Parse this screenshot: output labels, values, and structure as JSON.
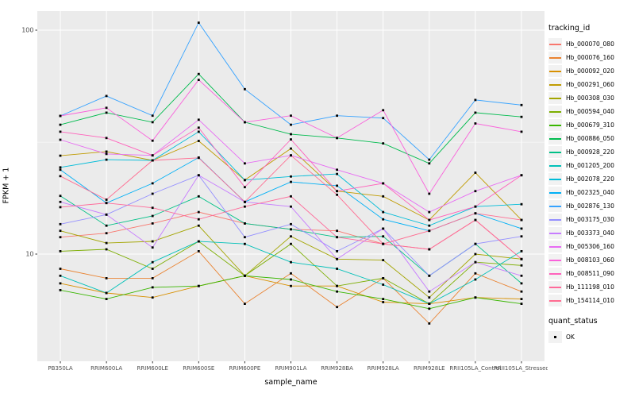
{
  "chart_data": {
    "type": "line",
    "title": "",
    "xlabel": "sample_name",
    "ylabel": "FPKM + 1",
    "y_scale": "log10",
    "ylim": [
      3.3,
      122
    ],
    "y_ticks": [
      100,
      10
    ],
    "y_tick_labels": [
      "100",
      "10"
    ],
    "y_minor_ticks": [
      31.6
    ],
    "grid": true,
    "legend": {
      "title": "tracking_id",
      "position": "right"
    },
    "quant_status": {
      "title": "quant_status",
      "entries": [
        "OK"
      ],
      "point_shape": "black-square"
    },
    "style": {
      "panel_bg": "#EBEBEB",
      "grid_color": "#FFFFFF",
      "point_color": "#000000",
      "tick_label_color": "#4D4D4D",
      "axis_title_color": "#000000"
    },
    "categories": [
      "PB350LA",
      "RRIM600LA",
      "RRIM600LE",
      "RRIM600SE",
      "RRIM600PE",
      "RRIM901LA",
      "RRIM928BA",
      "RRIM928LA",
      "RRIM928LE",
      "RRII105LA_Control",
      "RRII105LA_Stressed"
    ],
    "series": [
      {
        "name": "Hb_000070_080",
        "color": "#F8766D",
        "values": [
          11.9,
          12.4,
          13.7,
          15.4,
          13.7,
          12.9,
          12.7,
          11.1,
          10.5,
          14.2,
          9.5
        ]
      },
      {
        "name": "Hb_000076_160",
        "color": "#EA8331",
        "values": [
          8.6,
          7.8,
          7.8,
          10.3,
          6.0,
          8.2,
          5.8,
          7.8,
          4.9,
          8.2,
          6.8
        ]
      },
      {
        "name": "Hb_000092_020",
        "color": "#D89000",
        "values": [
          7.4,
          6.7,
          6.4,
          7.2,
          8.0,
          7.2,
          7.2,
          6.1,
          6.0,
          6.4,
          6.3
        ]
      },
      {
        "name": "Hb_000291_060",
        "color": "#C09B00",
        "values": [
          27.5,
          28.7,
          26.2,
          32.0,
          21.4,
          29.6,
          19.1,
          18.1,
          14.2,
          23.1,
          14.2
        ]
      },
      {
        "name": "Hb_000308_030",
        "color": "#A3A500",
        "values": [
          12.7,
          11.2,
          11.4,
          13.4,
          8.0,
          12.0,
          9.5,
          9.4,
          6.4,
          10.0,
          9.5
        ]
      },
      {
        "name": "Hb_000594_040",
        "color": "#7CAE00",
        "values": [
          10.3,
          10.5,
          8.6,
          11.4,
          8.0,
          11.1,
          7.2,
          7.8,
          6.0,
          9.2,
          8.9
        ]
      },
      {
        "name": "Hb_000679_310",
        "color": "#39B600",
        "values": [
          6.9,
          6.3,
          7.1,
          7.2,
          8.0,
          7.7,
          6.8,
          6.3,
          5.7,
          6.4,
          6.0
        ]
      },
      {
        "name": "Hb_000886_050",
        "color": "#00BB4E",
        "values": [
          37.8,
          42.8,
          38.8,
          63.7,
          38.8,
          34.3,
          33.0,
          31.2,
          25.4,
          42.8,
          41.0
        ]
      },
      {
        "name": "Hb_000928_220",
        "color": "#00C087",
        "values": [
          18.2,
          13.4,
          14.8,
          18.1,
          13.7,
          12.9,
          11.9,
          12.0,
          8.0,
          11.1,
          7.4
        ]
      },
      {
        "name": "Hb_001205_200",
        "color": "#00C0B8",
        "values": [
          8.0,
          6.7,
          9.2,
          11.4,
          11.1,
          9.2,
          8.6,
          7.3,
          6.0,
          7.7,
          10.3
        ]
      },
      {
        "name": "Hb_002078_220",
        "color": "#00BCD8",
        "values": [
          24.4,
          26.4,
          26.2,
          35.2,
          21.4,
          22.2,
          22.8,
          15.4,
          13.4,
          16.3,
          16.7
        ]
      },
      {
        "name": "Hb_002325_040",
        "color": "#00B0F6",
        "values": [
          23.8,
          16.9,
          20.7,
          27.0,
          17.1,
          21.0,
          20.2,
          14.3,
          12.7,
          15.2,
          13.0
        ]
      },
      {
        "name": "Hb_002876_130",
        "color": "#35A2FF",
        "values": [
          41.4,
          50.8,
          41.5,
          108.0,
          54.5,
          37.8,
          41.5,
          40.5,
          26.4,
          48.8,
          46.3
        ]
      },
      {
        "name": "Hb_003175_030",
        "color": "#9590FF",
        "values": [
          13.6,
          15.0,
          18.6,
          22.5,
          11.9,
          13.6,
          10.3,
          13.0,
          8.0,
          11.1,
          12.0
        ]
      },
      {
        "name": "Hb_003373_040",
        "color": "#C77CFF",
        "values": [
          17.1,
          15.0,
          10.7,
          22.5,
          17.1,
          16.3,
          9.5,
          13.0,
          6.8,
          9.2,
          8.0
        ]
      },
      {
        "name": "Hb_005306_160",
        "color": "#E76BF3",
        "values": [
          32.4,
          28.0,
          27.6,
          39.8,
          25.4,
          27.6,
          23.8,
          20.7,
          15.4,
          19.1,
          22.5
        ]
      },
      {
        "name": "Hb_008103_060",
        "color": "#FA62DB",
        "values": [
          41.4,
          45.0,
          32.1,
          60.0,
          38.8,
          41.5,
          33.0,
          43.9,
          18.6,
          38.3,
          35.2
        ]
      },
      {
        "name": "Hb_008511_090",
        "color": "#FF62BC",
        "values": [
          35.2,
          33.0,
          27.6,
          36.7,
          19.9,
          32.5,
          19.1,
          20.7,
          14.2,
          16.3,
          22.5
        ]
      },
      {
        "name": "Hb_111198_010",
        "color": "#FF6A9A",
        "values": [
          16.2,
          16.9,
          16.1,
          14.3,
          16.3,
          18.1,
          11.9,
          11.1,
          10.5,
          14.2,
          9.5
        ]
      },
      {
        "name": "Hb_154114_010",
        "color": "#FF6C91",
        "values": [
          22.3,
          17.5,
          26.2,
          26.9,
          17.1,
          27.6,
          18.4,
          11.1,
          12.7,
          15.2,
          14.2
        ]
      }
    ]
  }
}
